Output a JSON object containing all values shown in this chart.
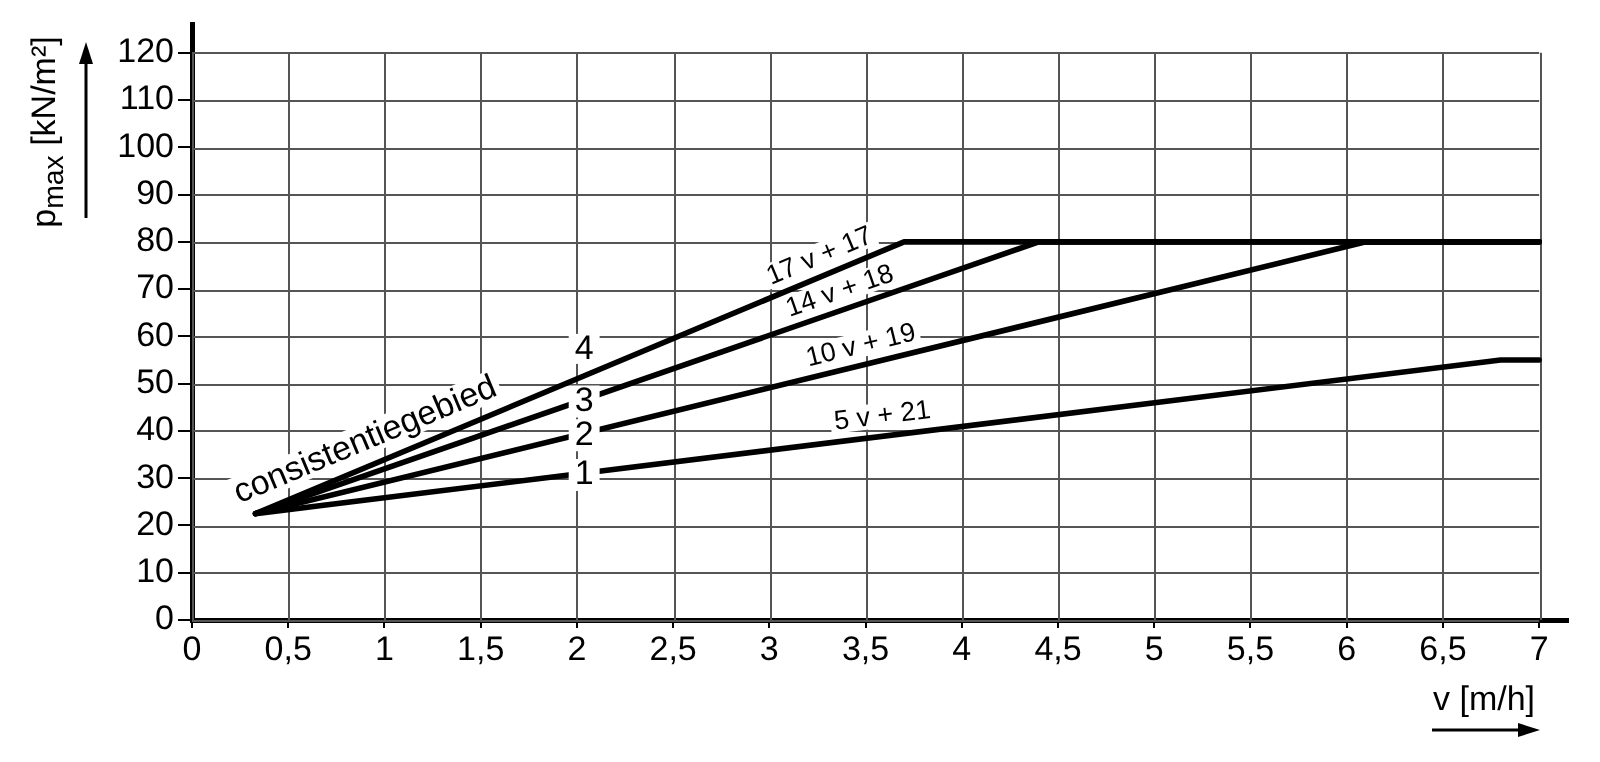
{
  "chart_data": {
    "type": "line",
    "xlabel": "v [m/h]",
    "ylabel": "p$_{max}$ [kN/m²]",
    "xlim": [
      0,
      7.15
    ],
    "ylim": [
      0,
      126
    ],
    "xticks": [
      0,
      {
        "value": 0.5,
        "label": "0,5"
      },
      1,
      {
        "value": 1.5,
        "label": "1,5"
      },
      2,
      {
        "value": 2.5,
        "label": "2,5"
      },
      3,
      {
        "value": 3.5,
        "label": "3,5"
      },
      4,
      {
        "value": 4.5,
        "label": "4,5"
      },
      5,
      {
        "value": 5.5,
        "label": "5,5"
      },
      6,
      {
        "value": 6.5,
        "label": "6,5"
      },
      7
    ],
    "yticks": [
      0,
      10,
      20,
      30,
      40,
      50,
      60,
      70,
      80,
      90,
      100,
      110,
      120
    ],
    "grid": true,
    "series": [
      {
        "name": "1",
        "color": "#000000",
        "x": [
          0.33,
          6.8,
          7
        ],
        "values": [
          22.5,
          55,
          55
        ]
      },
      {
        "name": "2",
        "color": "#000000",
        "x": [
          0.33,
          6.1,
          7
        ],
        "values": [
          22.5,
          80,
          80
        ]
      },
      {
        "name": "3",
        "color": "#000000",
        "x": [
          0.33,
          4.4,
          7
        ],
        "values": [
          22.5,
          80,
          80
        ]
      },
      {
        "name": "4",
        "color": "#000000",
        "x": [
          0.33,
          3.7,
          7
        ],
        "values": [
          22.5,
          80,
          80
        ]
      }
    ],
    "annotations": [
      {
        "text": "consistentiegebied",
        "x": 0.95,
        "y": 33.2
      },
      {
        "text": "17 v + 17",
        "x": 3.3,
        "y": 73.1
      },
      {
        "text": "14 v + 18",
        "x": 3.4,
        "y": 65.6
      },
      {
        "text": "10 v + 19",
        "x": 3.5,
        "y": 54
      },
      {
        "text": "5 v + 21",
        "x": 3.6,
        "y": 39
      }
    ]
  }
}
